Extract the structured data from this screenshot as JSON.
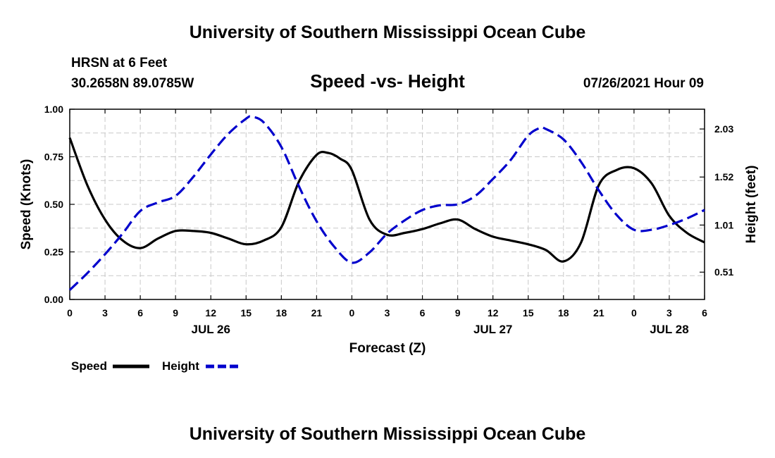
{
  "header": {
    "title_top": "University of Southern Mississippi Ocean Cube",
    "station": "HRSN at 6 Feet",
    "coords": "30.2658N  89.0785W",
    "datetime": "07/26/2021 Hour 09",
    "title_bottom": "University of Southern Mississippi Ocean Cube"
  },
  "chart_data": {
    "type": "line",
    "title": "Speed -vs- Height",
    "xlabel": "Forecast (Z)",
    "ylabel_left": "Speed (Knots)",
    "ylabel_right": "Height (feet)",
    "x_range_hours": [
      0,
      54
    ],
    "x_ticks": [
      0,
      3,
      6,
      9,
      12,
      15,
      18,
      21,
      24,
      27,
      30,
      33,
      36,
      39,
      42,
      45,
      48,
      51,
      54
    ],
    "x_tick_labels": [
      "0",
      "3",
      "6",
      "9",
      "12",
      "15",
      "18",
      "21",
      "0",
      "3",
      "6",
      "9",
      "12",
      "15",
      "18",
      "21",
      "0",
      "3",
      "6"
    ],
    "date_labels": [
      {
        "hour": 12,
        "label": "JUL 26"
      },
      {
        "hour": 36,
        "label": "JUL 27"
      },
      {
        "hour": 51,
        "label": "JUL 28"
      }
    ],
    "y_left": {
      "range": [
        0,
        1.0
      ],
      "ticks": [
        0,
        0.25,
        0.5,
        0.75,
        1.0
      ],
      "tick_labels": [
        "0.00",
        "0.25",
        "0.50",
        "0.75",
        "1.00"
      ]
    },
    "y_right": {
      "range": [
        0.22,
        2.24
      ],
      "ticks": [
        0.51,
        1.01,
        1.52,
        2.03
      ],
      "tick_labels": [
        "0.51",
        "1.01",
        "1.52",
        "2.03"
      ]
    },
    "grid": true,
    "legend": [
      {
        "label": "Speed",
        "color": "#000000",
        "style": "solid"
      },
      {
        "label": "Height",
        "color": "#0000cc",
        "style": "dashed"
      }
    ],
    "series": [
      {
        "name": "Speed",
        "axis": "left",
        "color": "#000000",
        "x": [
          0,
          1.5,
          3,
          4.5,
          6,
          7.5,
          9,
          10.5,
          12,
          13.5,
          15,
          16.5,
          18,
          19.5,
          21,
          22,
          23,
          24,
          25.5,
          27,
          28.5,
          30,
          31.5,
          33,
          34.5,
          36,
          37.5,
          39,
          40.5,
          42,
          43.5,
          45,
          46.5,
          48,
          49.5,
          51,
          52.5,
          54
        ],
        "values": [
          0.85,
          0.6,
          0.42,
          0.31,
          0.27,
          0.32,
          0.36,
          0.36,
          0.35,
          0.32,
          0.29,
          0.31,
          0.38,
          0.62,
          0.76,
          0.77,
          0.74,
          0.68,
          0.42,
          0.34,
          0.35,
          0.37,
          0.4,
          0.42,
          0.37,
          0.33,
          0.31,
          0.29,
          0.26,
          0.2,
          0.3,
          0.6,
          0.68,
          0.69,
          0.61,
          0.44,
          0.35,
          0.3
        ]
      },
      {
        "name": "Height",
        "axis": "right",
        "color": "#0000cc",
        "x": [
          0,
          1.5,
          3,
          4.5,
          6,
          7.5,
          9,
          10.5,
          12,
          13.5,
          15,
          15.5,
          16.5,
          18,
          19.5,
          21,
          22.5,
          24,
          25.5,
          27,
          28.5,
          30,
          31.5,
          33,
          34.5,
          36,
          37.5,
          39,
          40,
          40.5,
          42,
          43.5,
          45,
          46.5,
          48,
          49.5,
          51,
          52.5,
          54
        ],
        "values": [
          0.32,
          0.5,
          0.7,
          0.92,
          1.16,
          1.25,
          1.32,
          1.52,
          1.76,
          1.98,
          2.14,
          2.16,
          2.1,
          1.84,
          1.42,
          1.05,
          0.78,
          0.61,
          0.72,
          0.92,
          1.06,
          1.17,
          1.22,
          1.23,
          1.32,
          1.5,
          1.7,
          1.96,
          2.04,
          2.03,
          1.92,
          1.68,
          1.38,
          1.12,
          0.96,
          0.96,
          1.01,
          1.08,
          1.17
        ]
      }
    ]
  }
}
